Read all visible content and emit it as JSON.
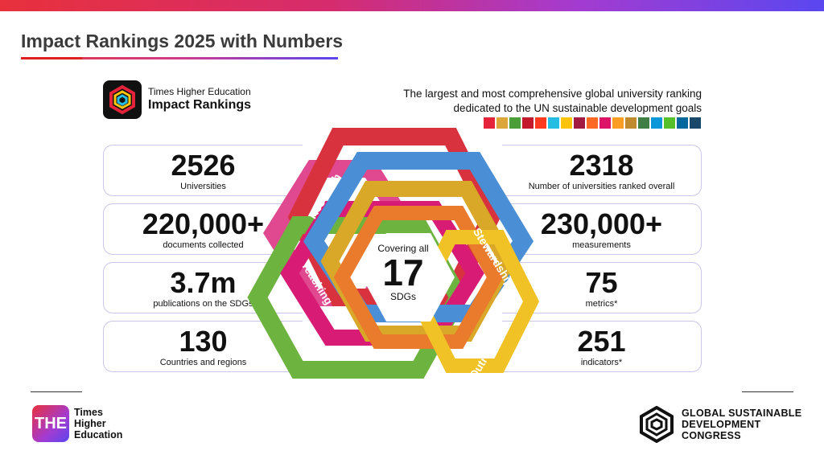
{
  "header": {
    "title": "Impact Rankings 2025 with Numbers"
  },
  "brand": {
    "small": "Times Higher Education",
    "big": "Impact Rankings"
  },
  "tagline": {
    "line1": "The largest and most comprehensive global university ranking",
    "line2": "dedicated to the UN sustainable development goals"
  },
  "sdg_colors": [
    "#e5243b",
    "#dda63a",
    "#4c9f38",
    "#c5192d",
    "#ff3a21",
    "#26bde2",
    "#fcc30b",
    "#a21942",
    "#fd6925",
    "#dd1367",
    "#fd9d24",
    "#bf8b2e",
    "#3f7e44",
    "#0a97d9",
    "#56c02b",
    "#00689d",
    "#19486a"
  ],
  "left_stats": [
    {
      "value": "2526",
      "label": "Universities"
    },
    {
      "value": "220,000+",
      "label": "documents collected"
    },
    {
      "value": "3.7m",
      "label": "publications on the SDGs"
    },
    {
      "value": "130",
      "label": "Countries and regions"
    }
  ],
  "right_stats": [
    {
      "value": "2318",
      "label": "Number of universities ranked overall"
    },
    {
      "value": "230,000+",
      "label": "measurements"
    },
    {
      "value": "75",
      "label": "metrics*"
    },
    {
      "value": "251",
      "label": "indicators*"
    }
  ],
  "center": {
    "line1": "Covering all",
    "number": "17",
    "line3": "SDGs"
  },
  "pillars": {
    "research": "Research",
    "teaching": "Teaching",
    "stewardship": "Stewardship",
    "outreach": "Outreach"
  },
  "footer": {
    "the_badge": "THE",
    "the_line1": "Times",
    "the_line2": "Higher",
    "the_line3": "Education",
    "gsdc_line1": "GLOBAL SUSTAINABLE",
    "gsdc_line2": "DEVELOPMENT",
    "gsdc_line3": "CONGRESS"
  }
}
